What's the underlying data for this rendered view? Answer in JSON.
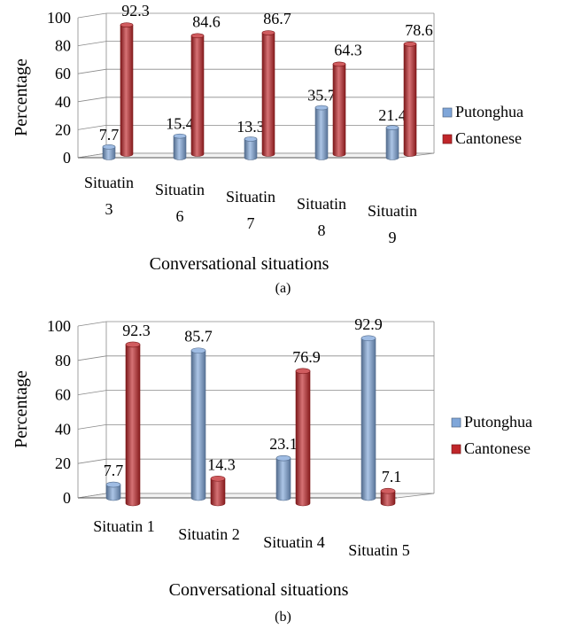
{
  "chart_data": [
    {
      "type": "bar",
      "title": "",
      "xlabel": "Conversational situations",
      "ylabel": "Percentage",
      "ylim": [
        0,
        100
      ],
      "yticks": [
        0,
        20,
        40,
        60,
        80,
        100
      ],
      "categories": [
        [
          "Situatin",
          "3"
        ],
        [
          "Situatin",
          "6"
        ],
        [
          "Situatin",
          "7"
        ],
        [
          "Situatin",
          "8"
        ],
        [
          "Situatin",
          "9"
        ]
      ],
      "series": [
        {
          "name": "Putonghua",
          "values": [
            7.7,
            15.4,
            13.3,
            35.7,
            21.4
          ],
          "labels": [
            "7.7",
            "15.4",
            "13.3",
            "35.7",
            "21.4"
          ],
          "color": "#7fa6d9"
        },
        {
          "name": "Cantonese",
          "values": [
            92.3,
            84.6,
            86.7,
            64.3,
            78.6
          ],
          "labels": [
            "92.3",
            "84.6",
            "86.7",
            "64.3",
            "78.6"
          ],
          "color": "#c0262a"
        }
      ],
      "legend": "right",
      "grid": true,
      "caption": "(a)"
    },
    {
      "type": "bar",
      "title": "",
      "xlabel": "Conversational situations",
      "ylabel": "Percentage",
      "ylim": [
        0,
        100
      ],
      "yticks": [
        0,
        20,
        40,
        60,
        80,
        100
      ],
      "categories": [
        [
          "Situatin 1"
        ],
        [
          "Situatin 2"
        ],
        [
          "Situatin 4"
        ],
        [
          "Situatin 5"
        ]
      ],
      "series": [
        {
          "name": "Putonghua",
          "values": [
            7.7,
            85.7,
            23.1,
            92.9
          ],
          "labels": [
            "7.7",
            "85.7",
            "23.1",
            "92.9"
          ],
          "color": "#7fa6d9"
        },
        {
          "name": "Cantonese",
          "values": [
            92.3,
            14.3,
            76.9,
            7.1
          ],
          "labels": [
            "92.3",
            "14.3",
            "76.9",
            "7.1"
          ],
          "color": "#c0262a"
        }
      ],
      "legend": "right",
      "grid": true,
      "caption": "(b)"
    }
  ]
}
